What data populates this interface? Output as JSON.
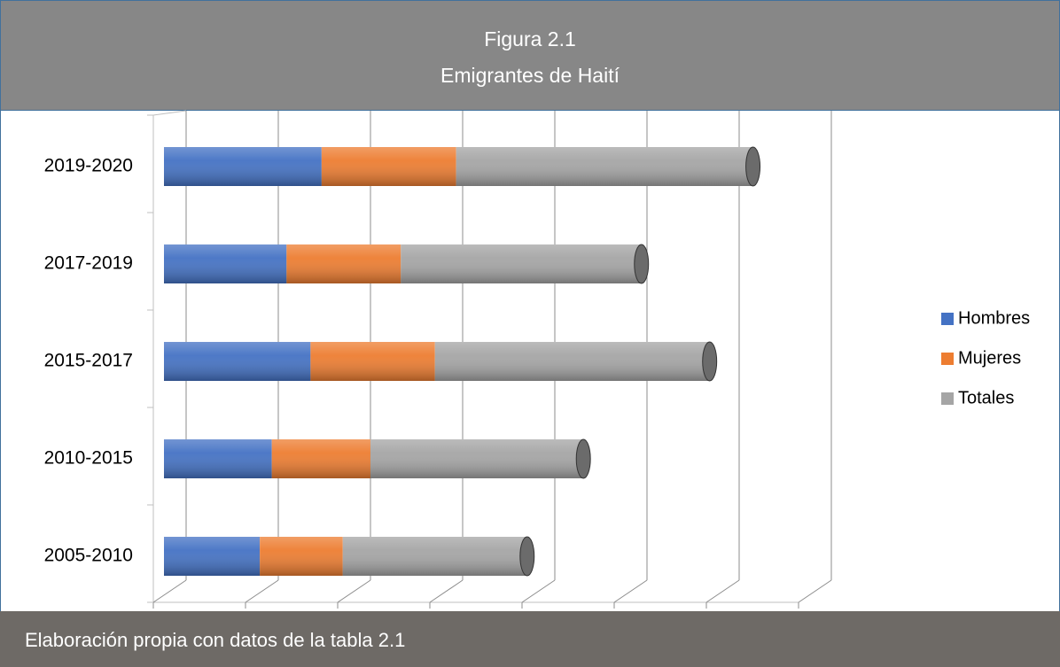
{
  "chart_data": {
    "type": "bar3d_stacked_horizontal",
    "title": "Figura 2.1",
    "subtitle": "Emigrantes de Haití",
    "source": "Elaboración propia con datos de la tabla 2.1",
    "categories": [
      "2005-2010",
      "2010-2015",
      "2015-2017",
      "2017-2019",
      "2019-2020"
    ],
    "series": [
      {
        "name": "Hombres",
        "color": "#4472c4",
        "values": [
          1.04,
          1.17,
          1.59,
          1.33,
          1.71
        ]
      },
      {
        "name": "Mujeres",
        "color": "#ed7d31",
        "values": [
          0.9,
          1.07,
          1.35,
          1.24,
          1.46
        ]
      },
      {
        "name": "Totales",
        "color": "#a5a5a5",
        "values": [
          2.0,
          2.31,
          2.98,
          2.61,
          3.22
        ]
      }
    ],
    "xlim": [
      0,
      7
    ],
    "xticks": [
      0,
      1,
      2,
      3,
      4,
      5,
      6,
      7
    ],
    "grid": true,
    "legend": "right"
  }
}
